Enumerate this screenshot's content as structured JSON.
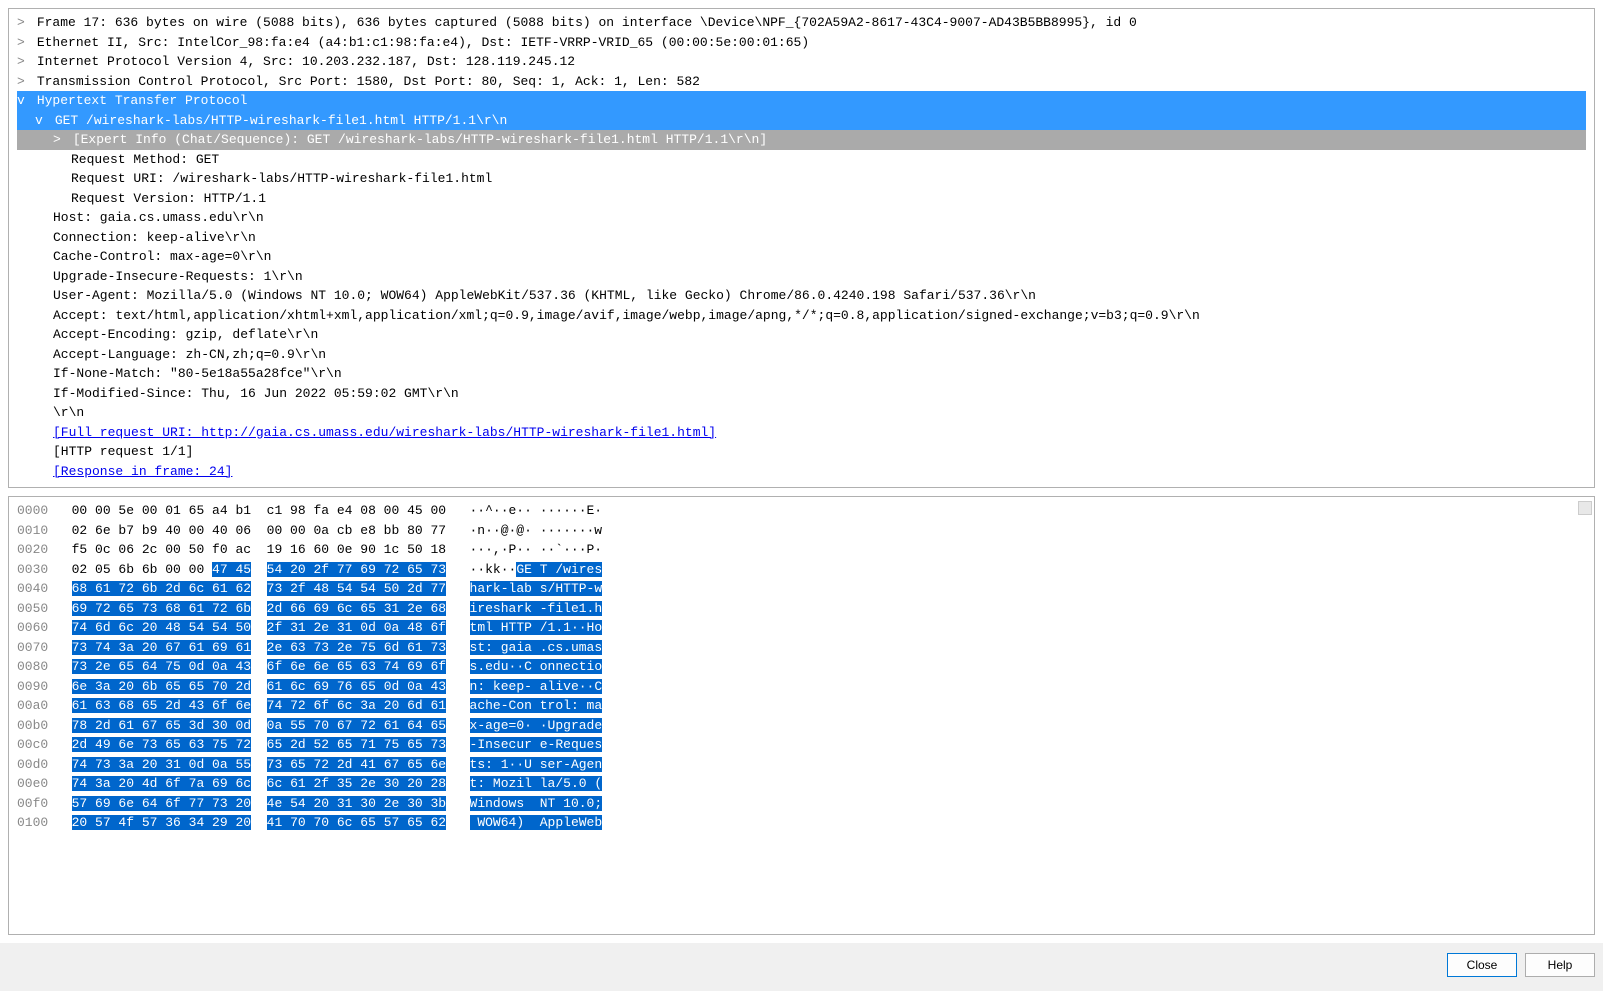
{
  "details": {
    "frame": "Frame 17: 636 bytes on wire (5088 bits), 636 bytes captured (5088 bits) on interface \\Device\\NPF_{702A59A2-8617-43C4-9007-AD43B5BB8995}, id 0",
    "ethernet": "Ethernet II, Src: IntelCor_98:fa:e4 (a4:b1:c1:98:fa:e4), Dst: IETF-VRRP-VRID_65 (00:00:5e:00:01:65)",
    "ip": "Internet Protocol Version 4, Src: 10.203.232.187, Dst: 128.119.245.12",
    "tcp": "Transmission Control Protocol, Src Port: 1580, Dst Port: 80, Seq: 1, Ack: 1, Len: 582",
    "http_header": "Hypertext Transfer Protocol",
    "get_line": "GET /wireshark-labs/HTTP-wireshark-file1.html HTTP/1.1\\r\\n",
    "expert_info": "[Expert Info (Chat/Sequence): GET /wireshark-labs/HTTP-wireshark-file1.html HTTP/1.1\\r\\n]",
    "req_method": "Request Method: GET",
    "req_uri": "Request URI: /wireshark-labs/HTTP-wireshark-file1.html",
    "req_version": "Request Version: HTTP/1.1",
    "host": "Host: gaia.cs.umass.edu\\r\\n",
    "connection": "Connection: keep-alive\\r\\n",
    "cache_control": "Cache-Control: max-age=0\\r\\n",
    "upgrade": "Upgrade-Insecure-Requests: 1\\r\\n",
    "user_agent": "User-Agent: Mozilla/5.0 (Windows NT 10.0; WOW64) AppleWebKit/537.36 (KHTML, like Gecko) Chrome/86.0.4240.198 Safari/537.36\\r\\n",
    "accept": "Accept: text/html,application/xhtml+xml,application/xml;q=0.9,image/avif,image/webp,image/apng,*/*;q=0.8,application/signed-exchange;v=b3;q=0.9\\r\\n",
    "accept_encoding": "Accept-Encoding: gzip, deflate\\r\\n",
    "accept_language": "Accept-Language: zh-CN,zh;q=0.9\\r\\n",
    "if_none_match": "If-None-Match: \"80-5e18a55a28fce\"\\r\\n",
    "if_modified_since": "If-Modified-Since: Thu, 16 Jun 2022 05:59:02 GMT\\r\\n",
    "crlf": "\\r\\n",
    "full_uri": "[Full request URI: http://gaia.cs.umass.edu/wireshark-labs/HTTP-wireshark-file1.html]",
    "http_req_num": "[HTTP request 1/1]",
    "response_frame": "[Response in frame: 24]"
  },
  "hex": {
    "rows": [
      {
        "off": "0000",
        "h1": "00 00 5e 00 01 65 a4 b1",
        "h2": "c1 98 fa e4 08 00 45 00",
        "a1": "··^··e·· ",
        "a2": "······E·",
        "sel": false,
        "sel_start": null
      },
      {
        "off": "0010",
        "h1": "02 6e b7 b9 40 00 40 06",
        "h2": "00 00 0a cb e8 bb 80 77",
        "a1": "·n··@·@· ",
        "a2": "·······w",
        "sel": false,
        "sel_start": null
      },
      {
        "off": "0020",
        "h1": "f5 0c 06 2c 00 50 f0 ac",
        "h2": "19 16 60 0e 90 1c 50 18",
        "a1": "···,·P·· ",
        "a2": "··`···P·",
        "sel": false,
        "sel_start": null
      },
      {
        "off": "0030",
        "h1": "02 05 6b 6b 00 00 ",
        "h1b": "47 45",
        "h2": "54 20 2f 77 69 72 65 73",
        "a1": "··kk··",
        "a1b": "GE ",
        "a2": "T /wires",
        "sel": true,
        "partial": true
      },
      {
        "off": "0040",
        "h1": "68 61 72 6b 2d 6c 61 62",
        "h2": "73 2f 48 54 54 50 2d 77",
        "a1": "hark-lab ",
        "a2": "s/HTTP-w",
        "sel": true
      },
      {
        "off": "0050",
        "h1": "69 72 65 73 68 61 72 6b",
        "h2": "2d 66 69 6c 65 31 2e 68",
        "a1": "ireshark ",
        "a2": "-file1.h",
        "sel": true
      },
      {
        "off": "0060",
        "h1": "74 6d 6c 20 48 54 54 50",
        "h2": "2f 31 2e 31 0d 0a 48 6f",
        "a1": "tml HTTP ",
        "a2": "/1.1··Ho",
        "sel": true
      },
      {
        "off": "0070",
        "h1": "73 74 3a 20 67 61 69 61",
        "h2": "2e 63 73 2e 75 6d 61 73",
        "a1": "st: gaia ",
        "a2": ".cs.umas",
        "sel": true
      },
      {
        "off": "0080",
        "h1": "73 2e 65 64 75 0d 0a 43",
        "h2": "6f 6e 6e 65 63 74 69 6f",
        "a1": "s.edu··C ",
        "a2": "onnectio",
        "sel": true
      },
      {
        "off": "0090",
        "h1": "6e 3a 20 6b 65 65 70 2d",
        "h2": "61 6c 69 76 65 0d 0a 43",
        "a1": "n: keep- ",
        "a2": "alive··C",
        "sel": true
      },
      {
        "off": "00a0",
        "h1": "61 63 68 65 2d 43 6f 6e",
        "h2": "74 72 6f 6c 3a 20 6d 61",
        "a1": "ache-Con ",
        "a2": "trol: ma",
        "sel": true
      },
      {
        "off": "00b0",
        "h1": "78 2d 61 67 65 3d 30 0d",
        "h2": "0a 55 70 67 72 61 64 65",
        "a1": "x-age=0· ",
        "a2": "·Upgrade",
        "sel": true
      },
      {
        "off": "00c0",
        "h1": "2d 49 6e 73 65 63 75 72",
        "h2": "65 2d 52 65 71 75 65 73",
        "a1": "-Insecur ",
        "a2": "e-Reques",
        "sel": true
      },
      {
        "off": "00d0",
        "h1": "74 73 3a 20 31 0d 0a 55",
        "h2": "73 65 72 2d 41 67 65 6e",
        "a1": "ts: 1··U ",
        "a2": "ser-Agen",
        "sel": true
      },
      {
        "off": "00e0",
        "h1": "74 3a 20 4d 6f 7a 69 6c",
        "h2": "6c 61 2f 35 2e 30 20 28",
        "a1": "t: Mozil ",
        "a2": "la/5.0 (",
        "sel": true
      },
      {
        "off": "00f0",
        "h1": "57 69 6e 64 6f 77 73 20",
        "h2": "4e 54 20 31 30 2e 30 3b",
        "a1": "Windows  ",
        "a2": "NT 10.0;",
        "sel": true
      },
      {
        "off": "0100",
        "h1": "20 57 4f 57 36 34 29 20",
        "h2": "41 70 70 6c 65 57 65 62",
        "a1": " WOW64)  ",
        "a2": "AppleWeb",
        "sel": true
      }
    ]
  },
  "buttons": {
    "close": "Close",
    "help": "Help"
  },
  "colors": {
    "selection_blue": "#3399ff",
    "hex_selection": "#0066cc",
    "link": "#0000ee",
    "offset_gray": "#888888",
    "border": "#b0b0b0",
    "window_bg": "#f0f0f0",
    "pane_bg": "#ffffff",
    "gray_selection": "#aaaaaa",
    "btn_primary_border": "#0078d7"
  }
}
